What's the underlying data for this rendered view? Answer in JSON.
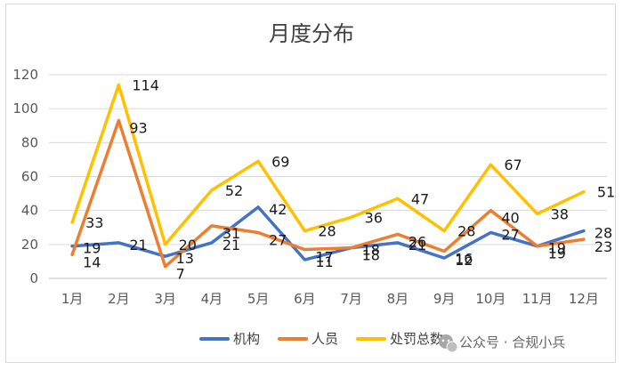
{
  "chart_data": {
    "type": "line",
    "title": "月度分布",
    "categories": [
      "1月",
      "2月",
      "3月",
      "4月",
      "5月",
      "6月",
      "7月",
      "8月",
      "9月",
      "10月",
      "11月",
      "12月"
    ],
    "ylim": [
      0,
      120
    ],
    "yticks": [
      0,
      20,
      40,
      60,
      80,
      100,
      120
    ],
    "grid": true,
    "legend_position": "bottom",
    "series": [
      {
        "name": "机构",
        "color": "#4472C4",
        "values": [
          19,
          21,
          13,
          21,
          42,
          11,
          18,
          21,
          12,
          27,
          19,
          28
        ]
      },
      {
        "name": "人员",
        "color": "#ED7D31",
        "values": [
          14,
          93,
          7,
          31,
          27,
          17,
          18,
          26,
          16,
          40,
          19,
          23
        ]
      },
      {
        "name": "处罚总数",
        "color": "#FFC000",
        "values": [
          33,
          114,
          20,
          52,
          69,
          28,
          36,
          47,
          28,
          67,
          38,
          51
        ]
      }
    ]
  },
  "watermark": {
    "icon": "wechat-icon",
    "text": "公众号 · 合规小兵"
  }
}
